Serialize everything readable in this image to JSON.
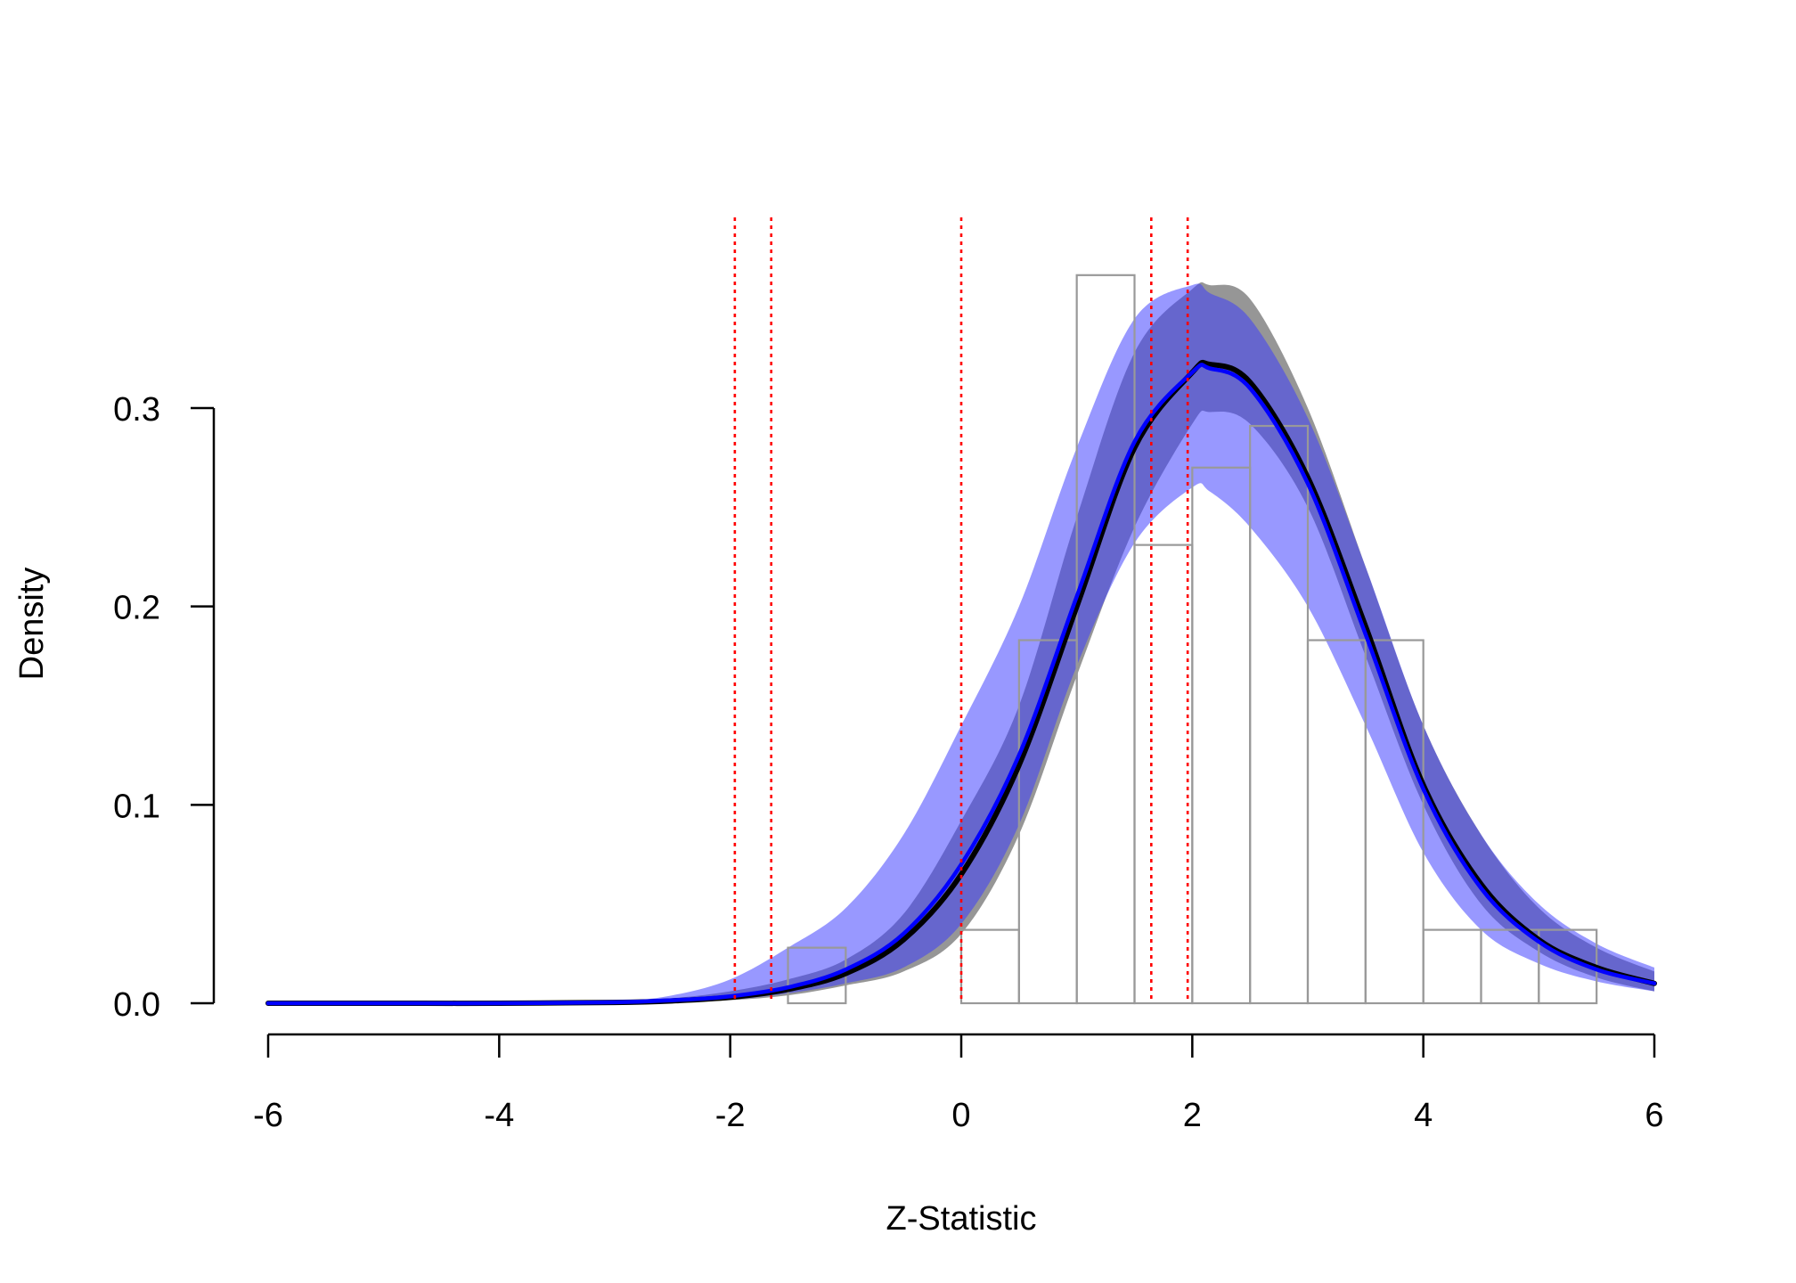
{
  "chart_data": {
    "type": "area",
    "title": "",
    "xlabel": "Z-Statistic",
    "ylabel": "Density",
    "xlim": [
      -6,
      6
    ],
    "ylim": [
      0,
      0.36
    ],
    "x_ticks": [
      -6,
      -4,
      -2,
      0,
      2,
      4,
      6
    ],
    "x_tick_labels": [
      "-6",
      "-4",
      "-2",
      "0",
      "2",
      "4",
      "6"
    ],
    "y_ticks": [
      0.0,
      0.1,
      0.2,
      0.3
    ],
    "y_tick_labels": [
      "0.0",
      "0.1",
      "0.2",
      "0.3"
    ],
    "grid": false,
    "legend": "none",
    "histogram": {
      "bin_edges": [
        -1.5,
        -1.0,
        -0.5,
        0.0,
        0.5,
        1.0,
        1.5,
        2.0,
        2.5,
        3.0,
        3.5,
        4.0,
        4.5,
        5.0,
        5.5
      ],
      "density": [
        0.028,
        0.0,
        0.0,
        0.037,
        0.183,
        0.367,
        0.231,
        0.27,
        0.291,
        0.183,
        0.183,
        0.037,
        0.037,
        0.037
      ],
      "edge_color": "#999999"
    },
    "reference_lines": {
      "x": [
        -1.96,
        -1.645,
        0,
        1.645,
        1.96
      ],
      "color": "#ff0000",
      "style": "dotted"
    },
    "series": [
      {
        "x": [
          -6,
          -5,
          -4,
          -3,
          -2.5,
          -2,
          -1.5,
          -1,
          -0.5,
          0,
          0.5,
          1,
          1.5,
          2,
          2.15,
          2.5,
          3,
          3.5,
          4,
          4.5,
          5,
          5.5,
          6
        ],
        "y": [
          0,
          0,
          0,
          0.0004,
          0.0012,
          0.003,
          0.007,
          0.015,
          0.032,
          0.065,
          0.12,
          0.2,
          0.28,
          0.318,
          0.322,
          0.313,
          0.265,
          0.19,
          0.11,
          0.06,
          0.032,
          0.018,
          0.01
        ],
        "lower": [
          0,
          0,
          0,
          0.0002,
          0.0006,
          0.0015,
          0.004,
          0.009,
          0.016,
          0.035,
          0.085,
          0.165,
          0.24,
          0.292,
          0.298,
          0.292,
          0.25,
          0.175,
          0.1,
          0.05,
          0.026,
          0.013,
          0.006
        ],
        "upper": [
          0,
          0,
          0,
          0.0008,
          0.0025,
          0.006,
          0.012,
          0.022,
          0.045,
          0.092,
          0.15,
          0.245,
          0.328,
          0.36,
          0.362,
          0.355,
          0.3,
          0.22,
          0.14,
          0.085,
          0.048,
          0.028,
          0.016
        ],
        "line_color": "#000000",
        "band_color": "#7f7f7f"
      },
      {
        "x": [
          -6,
          -5,
          -4,
          -3,
          -2.5,
          -2,
          -1.5,
          -1,
          -0.5,
          0,
          0.5,
          1,
          1.5,
          2,
          2.15,
          2.5,
          3,
          3.5,
          4,
          4.5,
          5,
          5.5,
          6
        ],
        "y": [
          0,
          0,
          0,
          0.0005,
          0.0015,
          0.0035,
          0.008,
          0.017,
          0.035,
          0.07,
          0.125,
          0.205,
          0.283,
          0.318,
          0.32,
          0.31,
          0.262,
          0.186,
          0.108,
          0.058,
          0.031,
          0.017,
          0.01
        ],
        "lower": [
          0,
          0,
          0,
          0.0002,
          0.0007,
          0.0018,
          0.005,
          0.01,
          0.018,
          0.04,
          0.09,
          0.17,
          0.232,
          0.26,
          0.258,
          0.24,
          0.2,
          0.14,
          0.076,
          0.037,
          0.02,
          0.011,
          0.006
        ],
        "upper": [
          0,
          0,
          0,
          0.001,
          0.004,
          0.012,
          0.028,
          0.048,
          0.085,
          0.14,
          0.2,
          0.28,
          0.345,
          0.362,
          0.358,
          0.345,
          0.295,
          0.22,
          0.14,
          0.085,
          0.05,
          0.03,
          0.018
        ],
        "line_color": "#0000ff",
        "band_color": "#3a3aff"
      }
    ]
  }
}
